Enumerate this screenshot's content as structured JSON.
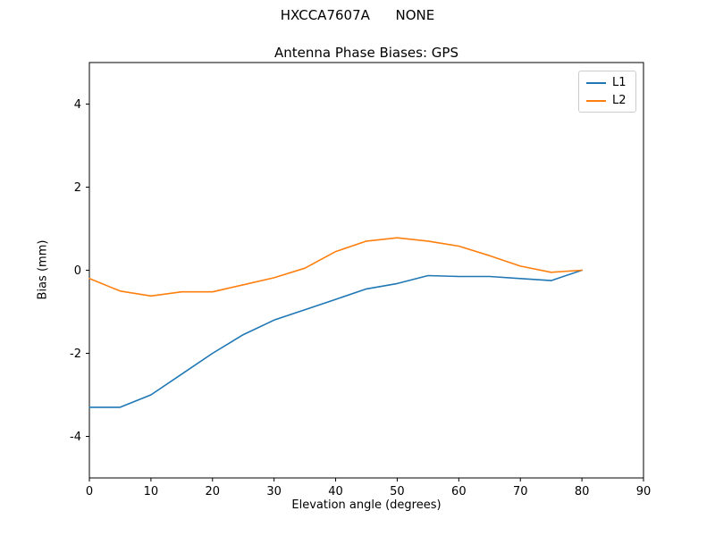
{
  "figure": {
    "suptitle": "HXCCA7607A      NONE"
  },
  "legend": {
    "items": [
      {
        "label": "L1"
      },
      {
        "label": "L2"
      }
    ]
  },
  "chart_data": {
    "type": "line",
    "title": "Antenna Phase Biases: GPS",
    "xlabel": "Elevation angle (degrees)",
    "ylabel": "Bias (mm)",
    "xlim": [
      0,
      90
    ],
    "ylim": [
      -5,
      5
    ],
    "xticks": [
      0,
      10,
      20,
      30,
      40,
      50,
      60,
      70,
      80,
      90
    ],
    "yticks": [
      -4,
      -2,
      0,
      2,
      4
    ],
    "grid": false,
    "legend_position": "upper right",
    "x": [
      0,
      5,
      10,
      15,
      20,
      25,
      30,
      35,
      40,
      45,
      50,
      55,
      60,
      65,
      70,
      75,
      80
    ],
    "series": [
      {
        "name": "L1",
        "color": "#1f77b4",
        "values": [
          -3.3,
          -3.3,
          -3.0,
          -2.5,
          -2.0,
          -1.55,
          -1.2,
          -0.95,
          -0.7,
          -0.45,
          -0.32,
          -0.13,
          -0.15,
          -0.15,
          -0.2,
          -0.25,
          0.0
        ]
      },
      {
        "name": "L2",
        "color": "#ff7f0e",
        "values": [
          -0.2,
          -0.5,
          -0.62,
          -0.52,
          -0.52,
          -0.35,
          -0.18,
          0.05,
          0.45,
          0.7,
          0.78,
          0.7,
          0.58,
          0.35,
          0.1,
          -0.05,
          0.0
        ]
      }
    ]
  }
}
